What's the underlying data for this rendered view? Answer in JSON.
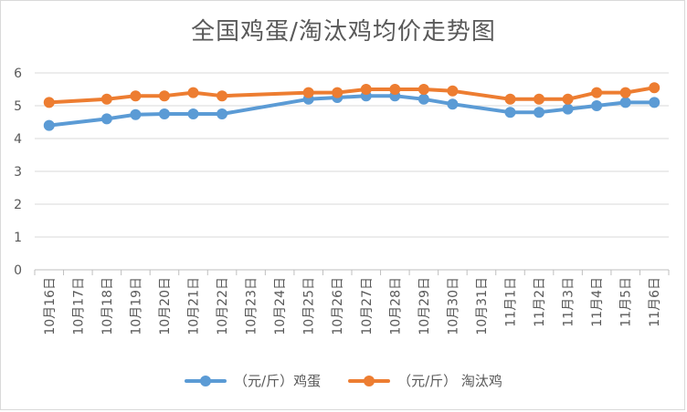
{
  "chart_data": {
    "type": "line",
    "title": "全国鸡蛋/淘汰鸡均价走势图",
    "categories": [
      "10月16日",
      "10月17日",
      "10月18日",
      "10月19日",
      "10月20日",
      "10月21日",
      "10月22日",
      "10月23日",
      "10月24日",
      "10月25日",
      "10月26日",
      "10月27日",
      "10月28日",
      "10月29日",
      "10月30日",
      "10月31日",
      "11月1日",
      "11月2日",
      "11月3日",
      "11月4日",
      "11月5日",
      "11月6日"
    ],
    "ylim": [
      0,
      6
    ],
    "yticks": [
      "0",
      "1",
      "2",
      "3",
      "4",
      "5",
      "6"
    ],
    "grid": true,
    "legend_position": "bottom",
    "series": [
      {
        "name": "（元/斤）鸡蛋",
        "color": "#5b9bd5",
        "values": [
          4.4,
          null,
          4.6,
          4.73,
          4.75,
          4.75,
          4.75,
          null,
          null,
          5.2,
          5.25,
          5.3,
          5.3,
          5.2,
          5.05,
          null,
          4.8,
          4.8,
          4.9,
          5.0,
          5.1,
          5.1
        ]
      },
      {
        "name": "（元/斤） 淘汰鸡",
        "color": "#ed7d31",
        "values": [
          5.1,
          null,
          5.2,
          5.3,
          5.3,
          5.4,
          5.3,
          null,
          null,
          5.4,
          5.4,
          5.5,
          5.5,
          5.5,
          5.45,
          null,
          5.2,
          5.2,
          5.2,
          5.4,
          5.4,
          5.55
        ]
      }
    ]
  }
}
